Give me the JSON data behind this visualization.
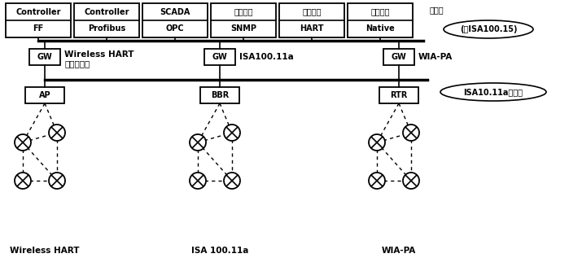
{
  "top_boxes_row1": [
    "Controller",
    "Controller",
    "SCADA",
    "网络管理",
    "资产管理",
    "配置工具"
  ],
  "top_boxes_row2": [
    "FF",
    "Profibus",
    "OPC",
    "SNMP",
    "HART",
    "Native"
  ],
  "backnet_label": "回传网",
  "isa100_15_label": "(即ISA100.15)",
  "gw_network_label1": "Wireless HART",
  "gw_network_label1b": "单逻辑网络",
  "gw_network_label2": "ISA100.11a",
  "gw_network_label3": "WIA-PA",
  "backbone_label": "ISA10.11a骨干网",
  "lower_box_labels": [
    "AP",
    "BBR",
    "RTR"
  ],
  "bottom_labels": [
    "Wireless HART",
    "ISA 100.11a",
    "WIA-PA"
  ],
  "bg_color": "white"
}
